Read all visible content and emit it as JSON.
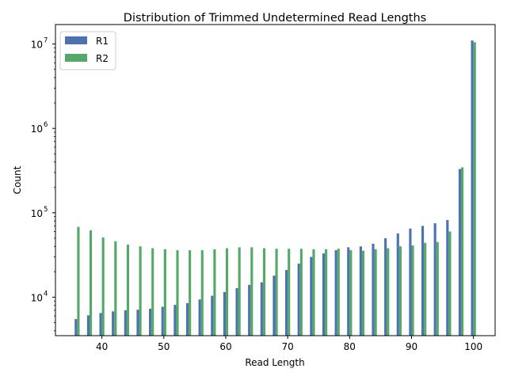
{
  "chart_data": {
    "type": "bar",
    "title": "Distribution of Trimmed Undetermined Read Lengths",
    "xlabel": "Read Length",
    "ylabel": "Count",
    "yscale": "log",
    "xlim": [
      32.5,
      103.5
    ],
    "ylim": [
      3500,
      17000000
    ],
    "x_ticks": [
      40,
      50,
      60,
      70,
      80,
      90,
      100
    ],
    "y_ticks": [
      {
        "value": 10000,
        "base": "10",
        "exp": "4"
      },
      {
        "value": 100000,
        "base": "10",
        "exp": "5"
      },
      {
        "value": 1000000,
        "base": "10",
        "exp": "6"
      },
      {
        "value": 10000000,
        "base": "10",
        "exp": "7"
      }
    ],
    "legend_position": "top-left",
    "x": [
      36,
      38,
      40,
      42,
      44,
      46,
      48,
      50,
      52,
      54,
      56,
      58,
      60,
      62,
      64,
      66,
      68,
      70,
      72,
      74,
      76,
      78,
      80,
      82,
      84,
      86,
      88,
      90,
      92,
      94,
      96,
      98,
      100
    ],
    "series": [
      {
        "name": "R1",
        "color": "#4c72b0",
        "values": [
          5500,
          6100,
          6500,
          6800,
          7000,
          7100,
          7300,
          7700,
          8100,
          8500,
          9400,
          10400,
          11500,
          12800,
          14000,
          15000,
          18000,
          21000,
          25000,
          30000,
          33000,
          36000,
          39000,
          40000,
          43000,
          50000,
          57000,
          65000,
          70000,
          75000,
          82000,
          330000,
          11000000
        ]
      },
      {
        "name": "R2",
        "color": "#55a868",
        "values": [
          68000,
          62000,
          51000,
          46000,
          42000,
          40000,
          38000,
          37000,
          36000,
          36000,
          36000,
          37000,
          38000,
          39000,
          39000,
          38000,
          37500,
          37500,
          37500,
          37000,
          37000,
          37500,
          36000,
          35500,
          37000,
          38000,
          40000,
          41000,
          44000,
          45000,
          60000,
          345000,
          10500000
        ]
      }
    ]
  }
}
